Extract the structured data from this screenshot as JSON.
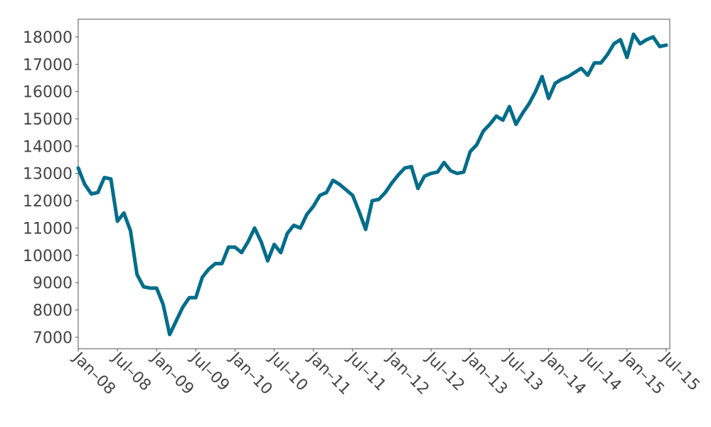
{
  "chart_data": {
    "type": "line",
    "x": [
      "2008-01",
      "2008-02",
      "2008-03",
      "2008-04",
      "2008-05",
      "2008-06",
      "2008-07",
      "2008-08",
      "2008-09",
      "2008-10",
      "2008-11",
      "2008-12",
      "2009-01",
      "2009-02",
      "2009-03",
      "2009-04",
      "2009-05",
      "2009-06",
      "2009-07",
      "2009-08",
      "2009-09",
      "2009-10",
      "2009-11",
      "2009-12",
      "2010-01",
      "2010-02",
      "2010-03",
      "2010-04",
      "2010-05",
      "2010-06",
      "2010-07",
      "2010-08",
      "2010-09",
      "2010-10",
      "2010-11",
      "2010-12",
      "2011-01",
      "2011-02",
      "2011-03",
      "2011-04",
      "2011-05",
      "2011-06",
      "2011-07",
      "2011-08",
      "2011-09",
      "2011-10",
      "2011-11",
      "2011-12",
      "2012-01",
      "2012-02",
      "2012-03",
      "2012-04",
      "2012-05",
      "2012-06",
      "2012-07",
      "2012-08",
      "2012-09",
      "2012-10",
      "2012-11",
      "2012-12",
      "2013-01",
      "2013-02",
      "2013-03",
      "2013-04",
      "2013-05",
      "2013-06",
      "2013-07",
      "2013-08",
      "2013-09",
      "2013-10",
      "2013-11",
      "2013-12",
      "2014-01",
      "2014-02",
      "2014-03",
      "2014-04",
      "2014-05",
      "2014-06",
      "2014-07",
      "2014-08",
      "2014-09",
      "2014-10",
      "2014-11",
      "2014-12",
      "2015-01",
      "2015-02",
      "2015-03",
      "2015-04",
      "2015-05",
      "2015-06",
      "2015-07"
    ],
    "series": [
      {
        "color": "#006d8a",
        "values": [
          13200,
          12600,
          12250,
          12300,
          12850,
          12800,
          11250,
          11550,
          10900,
          9300,
          8850,
          8800,
          8800,
          8200,
          7100,
          7600,
          8100,
          8450,
          8450,
          9200,
          9500,
          9700,
          9700,
          10300,
          10300,
          10100,
          10500,
          11000,
          10500,
          9800,
          10400,
          10100,
          10800,
          11100,
          11000,
          11500,
          11800,
          12200,
          12300,
          12750,
          12600,
          12400,
          12200,
          11600,
          10950,
          12000,
          12050,
          12300,
          12650,
          12950,
          13200,
          13250,
          12450,
          12900,
          13000,
          13050,
          13400,
          13100,
          13000,
          13050,
          13800,
          14050,
          14550,
          14800,
          15100,
          14950,
          15450,
          14800,
          15200,
          15550,
          16000,
          16550,
          15750,
          16300,
          16450,
          16550,
          16700,
          16850,
          16600,
          17050,
          17050,
          17350,
          17750,
          17900,
          17250,
          18100,
          17750,
          17900,
          18000,
          17650,
          17700
        ]
      }
    ],
    "xlim": [
      "2008-01",
      "2015-07"
    ],
    "xticks": [
      {
        "value": "2008-01",
        "label": "Jan–08"
      },
      {
        "value": "2008-07",
        "label": "Jul–08"
      },
      {
        "value": "2009-01",
        "label": "Jan–09"
      },
      {
        "value": "2009-07",
        "label": "Jul–09"
      },
      {
        "value": "2010-01",
        "label": "Jan–10"
      },
      {
        "value": "2010-07",
        "label": "Jul–10"
      },
      {
        "value": "2011-01",
        "label": "Jan–11"
      },
      {
        "value": "2011-07",
        "label": "Jul–11"
      },
      {
        "value": "2012-01",
        "label": "Jan–12"
      },
      {
        "value": "2012-07",
        "label": "Jul–12"
      },
      {
        "value": "2013-01",
        "label": "Jan–13"
      },
      {
        "value": "2013-07",
        "label": "Jul–13"
      },
      {
        "value": "2014-01",
        "label": "Jan–14"
      },
      {
        "value": "2014-07",
        "label": "Jul–14"
      },
      {
        "value": "2015-01",
        "label": "Jan–15"
      },
      {
        "value": "2015-07",
        "label": "Jul–15"
      }
    ],
    "ylim": [
      6580,
      18650
    ],
    "yticks": [
      7000,
      8000,
      9000,
      10000,
      11000,
      12000,
      13000,
      14000,
      15000,
      16000,
      17000,
      18000
    ]
  }
}
